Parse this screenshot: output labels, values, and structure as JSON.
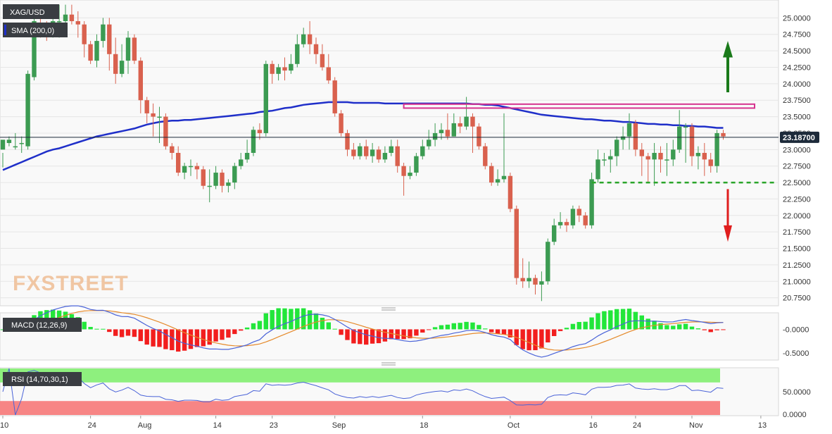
{
  "chart_data": [
    {
      "type": "candlestick",
      "instrument": "XAG/USD",
      "overlay": "SMA (200,0)",
      "last_price": "23.18700",
      "last_price_value": 23.187,
      "ylim": [
        20.65,
        25.25
      ],
      "y_ticks": [
        "25.0000",
        "24.7500",
        "24.5000",
        "24.2500",
        "24.0000",
        "23.7500",
        "23.5000",
        "23.2500",
        "23.0000",
        "22.7500",
        "22.5000",
        "22.2500",
        "22.0000",
        "21.7500",
        "21.5000",
        "21.2500",
        "21.0000",
        "20.7500"
      ],
      "x_ticks": [
        "10",
        "24",
        "Aug",
        "14",
        "23",
        "Sep",
        "18",
        "Oct",
        "16",
        "24",
        "Nov",
        "13"
      ],
      "candles": [
        [
          23.0,
          23.15,
          22.95,
          22.73
        ],
        [
          23.1,
          23.15,
          23.2,
          23.05
        ],
        [
          23.05,
          23.05,
          23.25,
          23.0
        ],
        [
          23.1,
          23.1,
          23.2,
          22.95
        ],
        [
          23.05,
          24.15,
          24.2,
          23.0
        ],
        [
          24.1,
          24.95,
          25.1,
          24.05
        ],
        [
          24.9,
          24.85,
          25.05,
          24.7
        ],
        [
          24.85,
          24.8,
          24.95,
          24.65
        ],
        [
          24.8,
          24.95,
          25.1,
          24.7
        ],
        [
          24.95,
          24.95,
          25.2,
          24.7
        ],
        [
          24.95,
          25.05,
          25.2,
          24.9
        ],
        [
          25.05,
          24.95,
          25.2,
          24.9
        ],
        [
          24.95,
          24.9,
          25.1,
          24.7
        ],
        [
          24.9,
          24.6,
          24.95,
          24.4
        ],
        [
          24.6,
          24.35,
          24.65,
          24.3
        ],
        [
          24.35,
          24.65,
          24.75,
          24.25
        ],
        [
          24.65,
          24.9,
          25.0,
          24.55
        ],
        [
          24.9,
          24.45,
          25.0,
          24.2
        ],
        [
          24.45,
          24.15,
          24.7,
          24.0
        ],
        [
          24.15,
          24.35,
          24.6,
          24.1
        ],
        [
          24.35,
          24.7,
          24.8,
          24.15
        ],
        [
          24.7,
          24.35,
          24.75,
          24.3
        ],
        [
          24.35,
          23.75,
          24.4,
          23.55
        ],
        [
          23.75,
          23.55,
          23.8,
          23.4
        ],
        [
          23.55,
          23.5,
          23.7,
          23.2
        ],
        [
          23.5,
          23.5,
          23.65,
          23.1
        ],
        [
          23.5,
          23.05,
          23.55,
          23.0
        ],
        [
          23.05,
          22.95,
          23.1,
          22.85
        ],
        [
          22.95,
          22.65,
          23.05,
          22.6
        ],
        [
          22.65,
          22.75,
          22.8,
          22.55
        ],
        [
          22.75,
          22.75,
          22.85,
          22.6
        ],
        [
          22.75,
          22.7,
          22.8,
          22.55
        ],
        [
          22.7,
          22.45,
          22.75,
          22.4
        ],
        [
          22.45,
          22.45,
          22.7,
          22.2
        ],
        [
          22.45,
          22.65,
          22.75,
          22.4
        ],
        [
          22.65,
          22.45,
          22.7,
          22.35
        ],
        [
          22.45,
          22.5,
          22.55,
          22.35
        ],
        [
          22.5,
          22.75,
          22.8,
          22.4
        ],
        [
          22.75,
          22.85,
          22.95,
          22.7
        ],
        [
          22.85,
          22.95,
          23.15,
          22.8
        ],
        [
          22.95,
          23.3,
          23.35,
          22.9
        ],
        [
          23.3,
          23.25,
          23.4,
          23.15
        ],
        [
          23.25,
          24.3,
          24.35,
          23.2
        ],
        [
          24.3,
          24.15,
          24.35,
          24.0
        ],
        [
          24.15,
          24.25,
          24.3,
          24.05
        ],
        [
          24.25,
          24.2,
          24.4,
          24.05
        ],
        [
          24.2,
          24.3,
          24.45,
          24.15
        ],
        [
          24.3,
          24.6,
          24.75,
          24.25
        ],
        [
          24.6,
          24.75,
          24.85,
          24.55
        ],
        [
          24.75,
          24.6,
          24.95,
          24.45
        ],
        [
          24.6,
          24.45,
          24.7,
          24.3
        ],
        [
          24.45,
          24.25,
          24.6,
          24.2
        ],
        [
          24.25,
          24.05,
          24.45,
          24.0
        ],
        [
          24.05,
          23.55,
          24.1,
          23.5
        ],
        [
          23.55,
          23.25,
          23.6,
          23.2
        ],
        [
          23.25,
          23.0,
          23.3,
          22.9
        ],
        [
          23.0,
          22.9,
          23.1,
          22.85
        ],
        [
          22.9,
          23.05,
          23.1,
          22.85
        ],
        [
          23.05,
          22.9,
          23.15,
          22.85
        ],
        [
          22.9,
          23.0,
          23.1,
          22.8
        ],
        [
          23.0,
          22.85,
          23.05,
          22.8
        ],
        [
          22.85,
          22.95,
          23.05,
          22.8
        ],
        [
          22.95,
          23.05,
          23.15,
          22.9
        ],
        [
          23.05,
          22.75,
          23.15,
          22.65
        ],
        [
          22.75,
          22.6,
          22.8,
          22.3
        ],
        [
          22.6,
          22.65,
          22.75,
          22.55
        ],
        [
          22.65,
          22.9,
          22.95,
          22.6
        ],
        [
          22.9,
          23.05,
          23.15,
          22.85
        ],
        [
          23.05,
          23.15,
          23.3,
          23.0
        ],
        [
          23.15,
          23.25,
          23.4,
          23.05
        ],
        [
          23.25,
          23.3,
          23.4,
          23.15
        ],
        [
          23.3,
          23.2,
          23.55,
          23.15
        ],
        [
          23.2,
          23.4,
          23.55,
          23.2
        ],
        [
          23.4,
          23.35,
          23.5,
          23.25
        ],
        [
          23.35,
          23.5,
          23.8,
          23.3
        ],
        [
          23.5,
          23.35,
          23.55,
          22.95
        ],
        [
          23.35,
          23.05,
          23.4,
          23.0
        ],
        [
          23.05,
          22.75,
          23.1,
          22.7
        ],
        [
          22.75,
          22.5,
          22.8,
          22.45
        ],
        [
          22.5,
          22.55,
          22.7,
          22.45
        ],
        [
          22.55,
          22.6,
          23.55,
          22.5
        ],
        [
          22.6,
          22.1,
          22.65,
          22.05
        ],
        [
          22.1,
          21.05,
          22.15,
          20.95
        ],
        [
          21.05,
          21.0,
          21.35,
          20.9
        ],
        [
          21.0,
          21.05,
          21.3,
          20.9
        ],
        [
          21.05,
          20.95,
          21.1,
          20.8
        ],
        [
          20.95,
          21.0,
          21.15,
          20.7
        ],
        [
          21.0,
          21.6,
          21.65,
          20.95
        ],
        [
          21.6,
          21.85,
          21.95,
          21.55
        ],
        [
          21.85,
          21.9,
          22.05,
          21.8
        ],
        [
          21.9,
          21.85,
          21.95,
          21.75
        ],
        [
          21.85,
          22.1,
          22.15,
          21.8
        ],
        [
          22.1,
          22.0,
          22.15,
          21.9
        ],
        [
          22.0,
          21.85,
          22.05,
          21.8
        ],
        [
          21.85,
          22.55,
          22.65,
          21.8
        ],
        [
          22.55,
          22.85,
          23.0,
          22.5
        ],
        [
          22.85,
          22.85,
          22.95,
          22.75
        ],
        [
          22.85,
          22.9,
          23.0,
          22.65
        ],
        [
          22.9,
          23.15,
          23.2,
          22.75
        ],
        [
          23.15,
          23.2,
          23.35,
          23.0
        ],
        [
          23.2,
          23.4,
          23.55,
          23.0
        ],
        [
          23.4,
          23.0,
          23.45,
          22.9
        ],
        [
          23.0,
          22.9,
          23.1,
          22.6
        ],
        [
          22.9,
          22.85,
          22.95,
          22.5
        ],
        [
          22.85,
          22.95,
          23.1,
          22.45
        ],
        [
          22.95,
          22.85,
          23.05,
          22.65
        ],
        [
          22.85,
          22.85,
          23.1,
          22.6
        ],
        [
          22.85,
          23.0,
          23.15,
          22.75
        ],
        [
          23.0,
          23.35,
          23.6,
          22.95
        ],
        [
          23.35,
          23.35,
          23.4,
          22.8
        ],
        [
          23.35,
          22.9,
          23.4,
          22.75
        ],
        [
          22.9,
          22.95,
          23.05,
          22.7
        ],
        [
          22.95,
          22.85,
          23.1,
          22.6
        ],
        [
          22.85,
          22.75,
          22.95,
          22.65
        ],
        [
          22.75,
          23.25,
          23.3,
          22.65
        ],
        [
          23.25,
          23.2,
          23.3,
          23.15
        ]
      ],
      "sma_200": [
        22.69,
        22.73,
        22.77,
        22.81,
        22.85,
        22.89,
        22.93,
        22.97,
        23.0,
        23.02,
        23.05,
        23.08,
        23.11,
        23.14,
        23.17,
        23.2,
        23.22,
        23.24,
        23.26,
        23.28,
        23.3,
        23.32,
        23.35,
        23.38,
        23.4,
        23.42,
        23.43,
        23.44,
        23.44,
        23.45,
        23.45,
        23.46,
        23.47,
        23.48,
        23.49,
        23.5,
        23.51,
        23.52,
        23.53,
        23.54,
        23.55,
        23.57,
        23.58,
        23.59,
        23.61,
        23.63,
        23.64,
        23.66,
        23.68,
        23.69,
        23.7,
        23.71,
        23.72,
        23.72,
        23.72,
        23.72,
        23.71,
        23.71,
        23.71,
        23.71,
        23.71,
        23.7,
        23.7,
        23.7,
        23.7,
        23.7,
        23.7,
        23.7,
        23.7,
        23.7,
        23.7,
        23.7,
        23.7,
        23.7,
        23.7,
        23.69,
        23.69,
        23.68,
        23.68,
        23.67,
        23.65,
        23.63,
        23.61,
        23.59,
        23.57,
        23.55,
        23.53,
        23.52,
        23.51,
        23.5,
        23.49,
        23.48,
        23.47,
        23.46,
        23.46,
        23.45,
        23.44,
        23.44,
        23.43,
        23.42,
        23.42,
        23.41,
        23.4,
        23.39,
        23.39,
        23.38,
        23.38,
        23.37,
        23.37,
        23.36,
        23.36,
        23.35,
        23.35,
        23.34,
        23.33,
        23.33
      ],
      "annotations": {
        "resistance_zone": [
          23.63,
          23.69
        ],
        "support_line": 22.5,
        "up_arrow": "green",
        "down_arrow": "red"
      }
    },
    {
      "type": "macd",
      "label": "MACD (12,26,9)",
      "ylim": [
        -0.62,
        0.32
      ],
      "y_ticks": [
        "-0.0000",
        "-0.5000"
      ]
    },
    {
      "type": "rsi",
      "label": "RSI (14,70,30,1)",
      "ylim": [
        0,
        100
      ],
      "y_ticks": [
        "50.0000",
        "0.0000"
      ]
    }
  ],
  "logo": "FXSTREET",
  "colors": {
    "up": "#3c9b52",
    "down": "#d9614e",
    "sma": "#1f2fc9",
    "macd": "#4a63d8",
    "signal": "#e58a2b",
    "hist_pos": "#22e63a",
    "hist_neg": "#f21e1e",
    "rsi_line": "#4a63d8",
    "overbought": "#8ef07e",
    "oversold": "#f78585",
    "resistance": "#d6338f",
    "support": "#2aa52a"
  }
}
